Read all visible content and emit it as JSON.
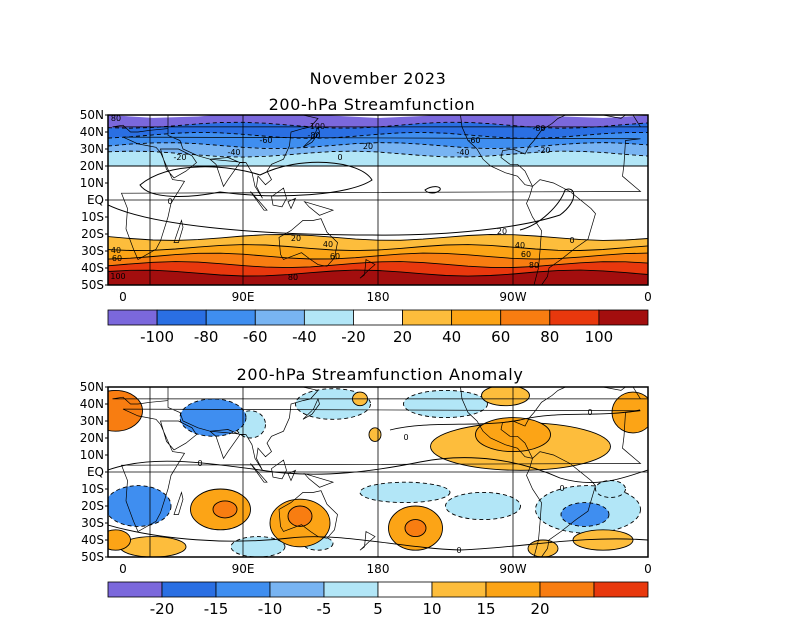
{
  "figure": {
    "title": "November 2023",
    "panels": [
      {
        "title": "200-hPa Streamfunction",
        "lat_labels": [
          "50N",
          "40N",
          "30N",
          "20N",
          "10N",
          "EQ",
          "10S",
          "20S",
          "30S",
          "40S",
          "50S"
        ],
        "lon_labels": [
          "0",
          "90E",
          "180",
          "90W",
          "0"
        ],
        "colorbar": {
          "ticks": [
            "-100",
            "-80",
            "-60",
            "-40",
            "-20",
            "20",
            "40",
            "60",
            "80",
            "100"
          ],
          "colors": [
            "#7b68dc",
            "#2a6fe3",
            "#3f8ef0",
            "#78b4f2",
            "#b2e6f7",
            "#ffffff",
            "#fdbd3c",
            "#fca416",
            "#f87d11",
            "#e8380d",
            "#a30e0e"
          ]
        },
        "contour_labels": [
          "80",
          "-100",
          "-80",
          "-60",
          "-40",
          "-20",
          "0",
          "20",
          "40",
          "60",
          "80",
          "100"
        ],
        "bands": [
          {
            "lat_top": 50,
            "lat_bot": 44,
            "color": "#7b68dc",
            "value": -100
          },
          {
            "lat_top": 44,
            "lat_bot": 38,
            "color": "#2a6fe3",
            "value": -80
          },
          {
            "lat_top": 38,
            "lat_bot": 32,
            "color": "#3f8ef0",
            "value": -60
          },
          {
            "lat_top": 32,
            "lat_bot": 27,
            "color": "#78b4f2",
            "value": -40
          },
          {
            "lat_top": 27,
            "lat_bot": 20,
            "color": "#b2e6f7",
            "value": -20
          },
          {
            "lat_top": 20,
            "lat_bot": -22,
            "color": "#ffffff",
            "value": 0
          },
          {
            "lat_top": -22,
            "lat_bot": -28,
            "color": "#fdbd3c",
            "value": 20
          },
          {
            "lat_top": -28,
            "lat_bot": -33,
            "color": "#fca416",
            "value": 40
          },
          {
            "lat_top": -33,
            "lat_bot": -38,
            "color": "#f87d11",
            "value": 60
          },
          {
            "lat_top": -38,
            "lat_bot": -43,
            "color": "#e8380d",
            "value": 80
          },
          {
            "lat_top": -43,
            "lat_bot": -50,
            "color": "#a30e0e",
            "value": 100
          }
        ]
      },
      {
        "title": "200-hPa Streamfunction Anomaly",
        "lat_labels": [
          "50N",
          "40N",
          "30N",
          "20N",
          "10N",
          "EQ",
          "10S",
          "20S",
          "30S",
          "40S",
          "50S"
        ],
        "lon_labels": [
          "0",
          "90E",
          "180",
          "90W",
          "0"
        ],
        "colorbar": {
          "ticks": [
            "-20",
            "-15",
            "-10",
            "-5",
            "5",
            "10",
            "15",
            "20"
          ],
          "colors": [
            "#7b68dc",
            "#2a6fe3",
            "#3f8ef0",
            "#78b4f2",
            "#b2e6f7",
            "#ffffff",
            "#fdbd3c",
            "#fca416",
            "#f87d11",
            "#e8380d"
          ]
        },
        "contour_labels": [
          "0"
        ],
        "anomalies": [
          {
            "lon": 5,
            "lat": 36,
            "rx": 18,
            "ry": 12,
            "level": 3
          },
          {
            "lon": 350,
            "lat": 35,
            "rx": 14,
            "ry": 12,
            "level": 2
          },
          {
            "lon": 70,
            "lat": 32,
            "rx": 22,
            "ry": 11,
            "level": -2
          },
          {
            "lon": 95,
            "lat": 28,
            "rx": 10,
            "ry": 8,
            "level": -1
          },
          {
            "lon": 150,
            "lat": 40,
            "rx": 25,
            "ry": 9,
            "level": -1
          },
          {
            "lon": 168,
            "lat": 43,
            "rx": 5,
            "ry": 4,
            "level": 1
          },
          {
            "lon": 178,
            "lat": 22,
            "rx": 4,
            "ry": 4,
            "level": 1
          },
          {
            "lon": 225,
            "lat": 40,
            "rx": 28,
            "ry": 8,
            "level": -1
          },
          {
            "lon": 265,
            "lat": 45,
            "rx": 16,
            "ry": 6,
            "level": 1
          },
          {
            "lon": 275,
            "lat": 15,
            "rx": 60,
            "ry": 14,
            "level": 1
          },
          {
            "lon": 270,
            "lat": 22,
            "rx": 25,
            "ry": 10,
            "level": 2
          },
          {
            "lon": 62,
            "lat": 30,
            "rx": 6,
            "ry": 4,
            "level": 1
          },
          {
            "lon": 20,
            "lat": -20,
            "rx": 22,
            "ry": 12,
            "level": -2
          },
          {
            "lon": 24,
            "lat": -18,
            "rx": 8,
            "ry": 5,
            "level": -1
          },
          {
            "lon": 75,
            "lat": -22,
            "rx": 20,
            "ry": 12,
            "level": 2
          },
          {
            "lon": 78,
            "lat": -22,
            "rx": 8,
            "ry": 5,
            "level": 3
          },
          {
            "lon": 128,
            "lat": -30,
            "rx": 20,
            "ry": 14,
            "level": 2
          },
          {
            "lon": 128,
            "lat": -26,
            "rx": 8,
            "ry": 6,
            "level": 3
          },
          {
            "lon": 140,
            "lat": -42,
            "rx": 10,
            "ry": 4,
            "level": -1
          },
          {
            "lon": 100,
            "lat": -44,
            "rx": 18,
            "ry": 6,
            "level": -1
          },
          {
            "lon": 30,
            "lat": -44,
            "rx": 22,
            "ry": 6,
            "level": 1
          },
          {
            "lon": 5,
            "lat": -40,
            "rx": 10,
            "ry": 6,
            "level": 2
          },
          {
            "lon": 198,
            "lat": -12,
            "rx": 30,
            "ry": 6,
            "level": -1
          },
          {
            "lon": 205,
            "lat": -33,
            "rx": 18,
            "ry": 13,
            "level": 2
          },
          {
            "lon": 205,
            "lat": -33,
            "rx": 7,
            "ry": 5,
            "level": 3
          },
          {
            "lon": 250,
            "lat": -20,
            "rx": 25,
            "ry": 8,
            "level": -1
          },
          {
            "lon": 320,
            "lat": -22,
            "rx": 35,
            "ry": 14,
            "level": -1
          },
          {
            "lon": 318,
            "lat": -25,
            "rx": 16,
            "ry": 7,
            "level": -2
          },
          {
            "lon": 335,
            "lat": -10,
            "rx": 10,
            "ry": 5,
            "level": -1
          },
          {
            "lon": 290,
            "lat": -45,
            "rx": 10,
            "ry": 5,
            "level": 1
          },
          {
            "lon": 330,
            "lat": -40,
            "rx": 20,
            "ry": 6,
            "level": 1
          }
        ]
      }
    ]
  }
}
